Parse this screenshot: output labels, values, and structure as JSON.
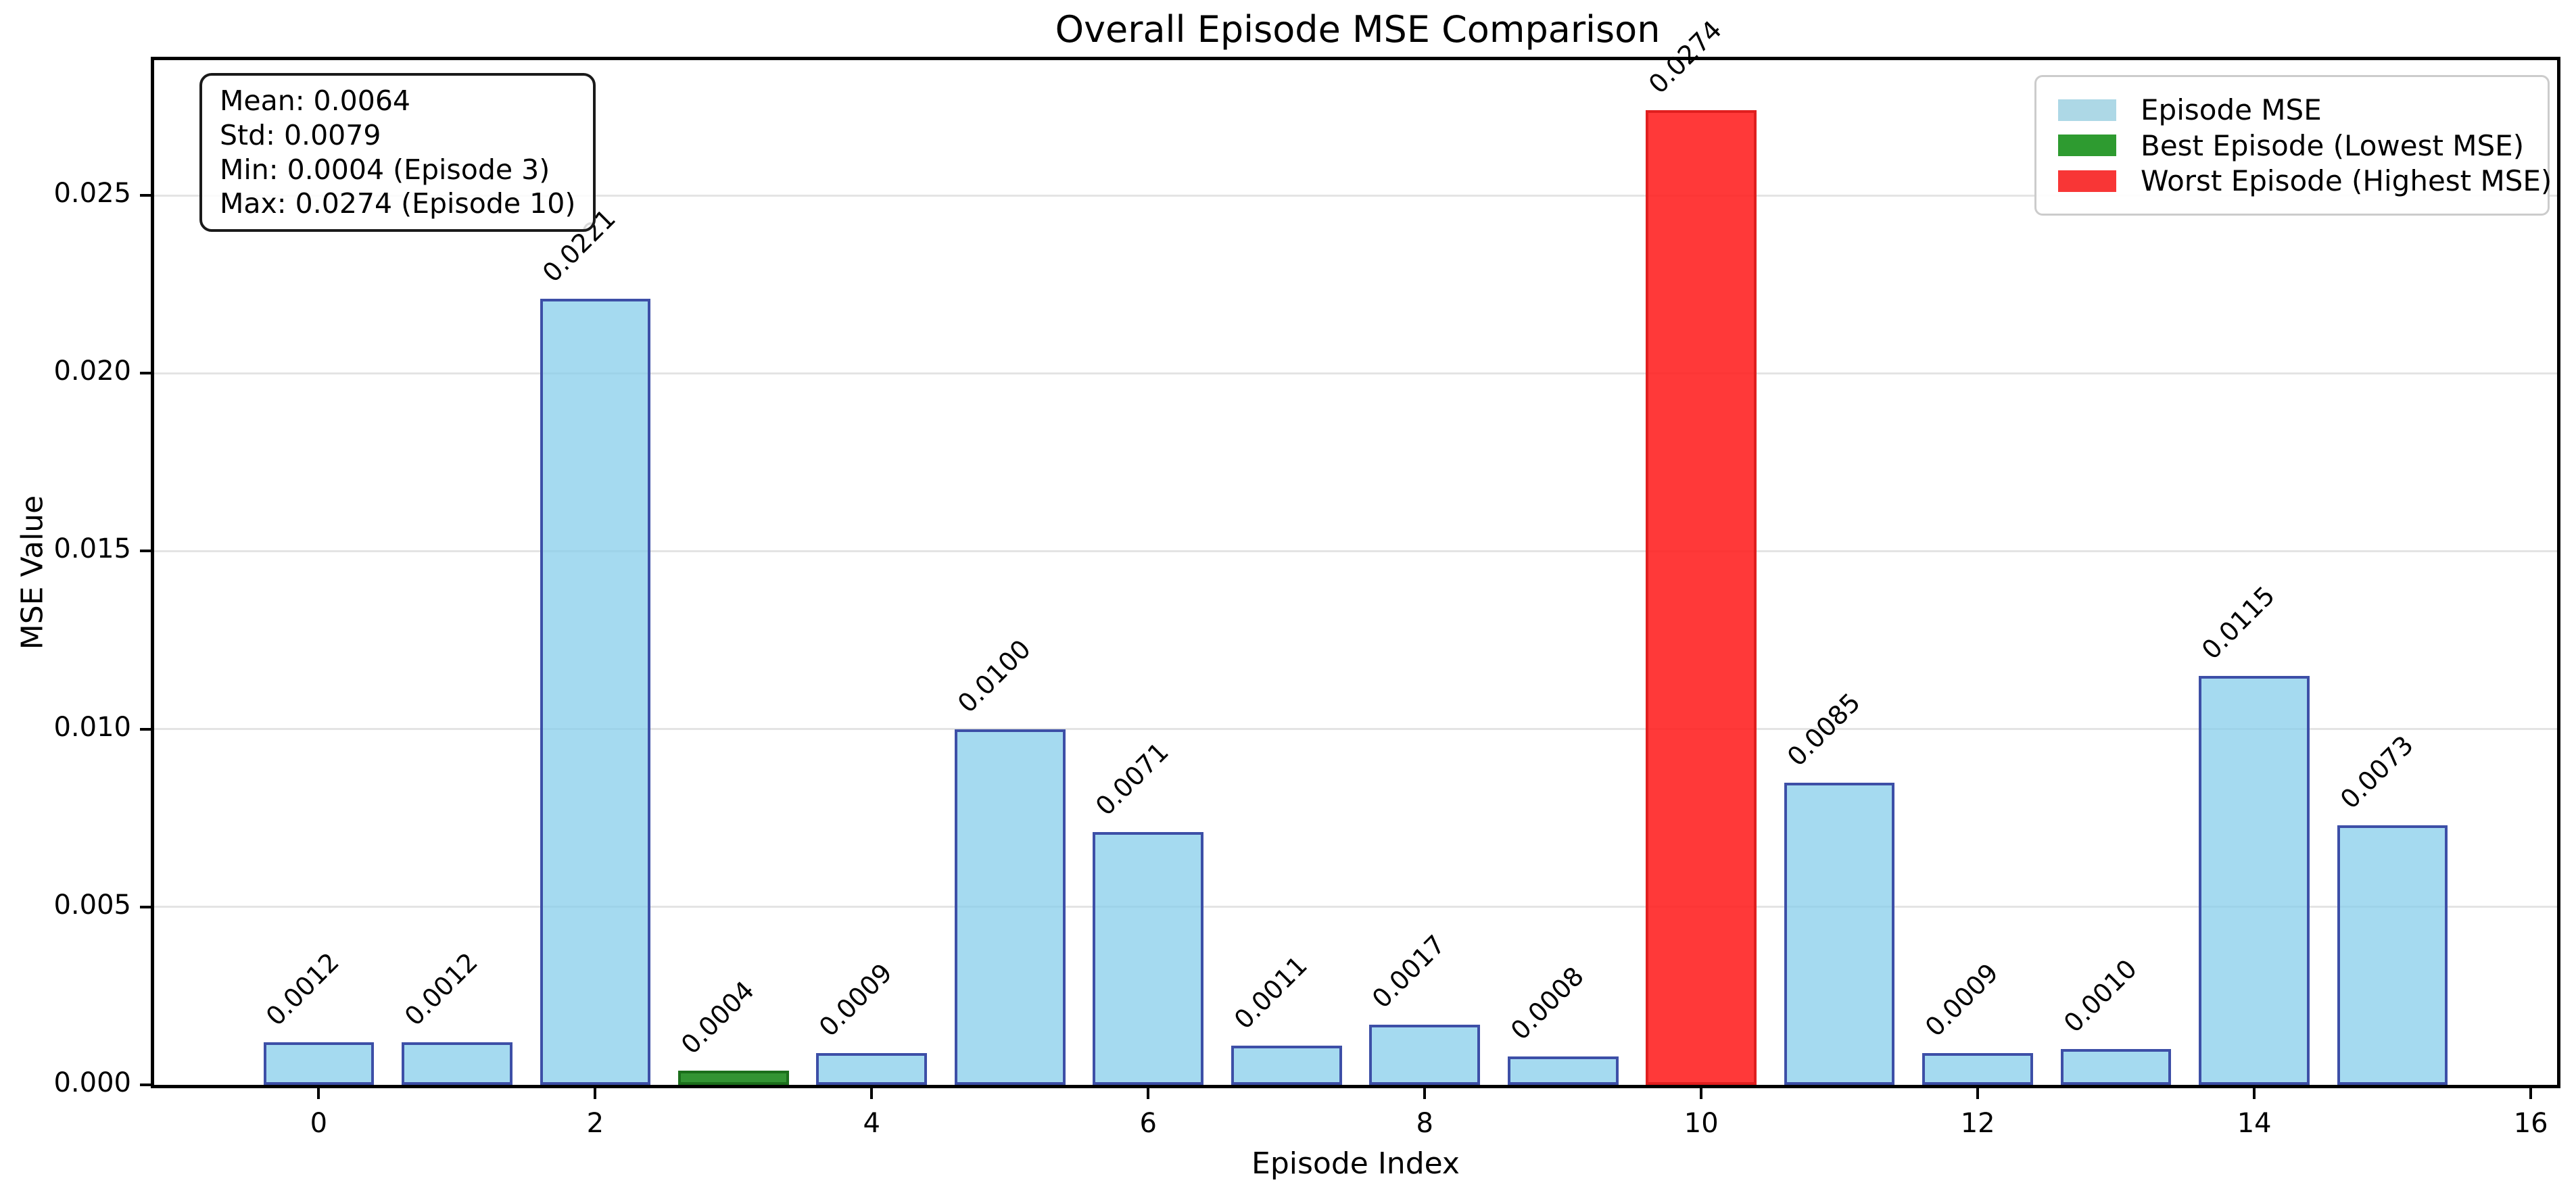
{
  "figure": {
    "title": "Overall Episode MSE Comparison",
    "xlabel": "Episode Index",
    "ylabel": "MSE Value"
  },
  "stats_box": {
    "lines": [
      "Mean: 0.0064",
      "Std: 0.0079",
      "Min: 0.0004 (Episode 3)",
      "Max: 0.0274 (Episode 10)"
    ]
  },
  "legend": {
    "position": "upper right",
    "entries": [
      {
        "label": "Episode MSE",
        "color": "#add8e6"
      },
      {
        "label": "Best Episode (Lowest MSE)",
        "color": "#2e9b30"
      },
      {
        "label": "Worst Episode (Highest MSE)",
        "color": "#f83636"
      }
    ]
  },
  "chart_data": {
    "type": "bar",
    "title": "Overall Episode MSE Comparison",
    "xlabel": "Episode Index",
    "ylabel": "MSE Value",
    "categories": [
      0,
      1,
      2,
      3,
      4,
      5,
      6,
      7,
      8,
      9,
      10,
      11,
      12,
      13,
      14,
      15
    ],
    "values": [
      0.0012,
      0.0012,
      0.0221,
      0.0004,
      0.0009,
      0.01,
      0.0071,
      0.0011,
      0.0017,
      0.0008,
      0.0274,
      0.0085,
      0.0009,
      0.001,
      0.0115,
      0.0073
    ],
    "value_labels": [
      "0.0012",
      "0.0012",
      "0.0221",
      "0.0004",
      "0.0009",
      "0.0100",
      "0.0071",
      "0.0011",
      "0.0017",
      "0.0008",
      "0.0274",
      "0.0085",
      "0.0009",
      "0.0010",
      "0.0115",
      "0.0073"
    ],
    "best_episode": 3,
    "worst_episode": 10,
    "mean": 0.0064,
    "std": 0.0079,
    "min": 0.0004,
    "max": 0.0274,
    "xticks": [
      0,
      2,
      4,
      6,
      8,
      10,
      12,
      14,
      16
    ],
    "yticks": [
      0.0,
      0.005,
      0.01,
      0.015,
      0.02,
      0.025
    ],
    "ytick_labels": [
      "0.000",
      "0.005",
      "0.010",
      "0.015",
      "0.020",
      "0.025"
    ],
    "xlim": [
      -1.19,
      16.19
    ],
    "ylim": [
      0,
      0.0288
    ],
    "bar_width": 0.8,
    "grid": "y",
    "legend_position": "upper right",
    "colors": {
      "normal": {
        "fill": "rgba(135,206,235,0.75)",
        "edge": "#3d4fa7"
      },
      "best": {
        "fill": "rgba(34,139,34,0.92)",
        "edge": "#1b6e1b"
      },
      "worst": {
        "fill": "rgba(255,30,30,0.88)",
        "edge": "#e01f1f"
      },
      "grid": "#e4e4e4",
      "spine": "#000000",
      "text": "#000000"
    }
  }
}
